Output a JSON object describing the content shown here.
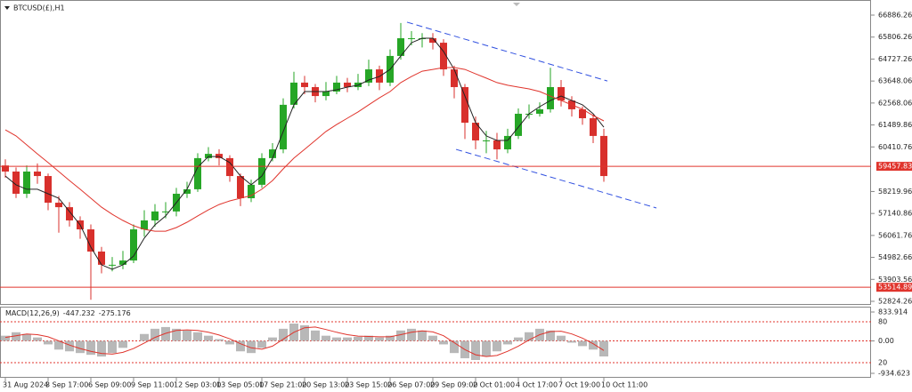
{
  "chart_data": [
    {
      "type": "candlestick",
      "title": "BTCUSD(£),H1",
      "categories": [
        "31 Aug 2024",
        null,
        null,
        null,
        "3 Sep 17:00",
        null,
        null,
        null,
        "6 Sep 09:00",
        null,
        null,
        null,
        "9 Sep 11:00",
        null,
        null,
        null,
        "12 Sep 03:00",
        null,
        null,
        null,
        "13 Sep 05:00",
        null,
        null,
        null,
        "17 Sep 21:00",
        null,
        null,
        null,
        "20 Sep 13:00",
        null,
        null,
        null,
        "23 Sep 15:00",
        null,
        null,
        null,
        "26 Sep 07:00",
        null,
        null,
        null,
        "29 Sep 09:00",
        null,
        null,
        null,
        "2 Oct 01:00",
        null,
        null,
        null,
        "4 Oct 17:00",
        null,
        null,
        null,
        "7 Oct 19:00",
        null,
        null,
        null,
        "10 Oct 11:00"
      ],
      "open": [
        59500,
        59200,
        58110,
        59200,
        58980,
        57670,
        57450,
        56800,
        56360,
        55270,
        54620,
        54620,
        54830,
        56360,
        56800,
        57240,
        57240,
        58110,
        58330,
        59860,
        60070,
        59860,
        58980,
        57890,
        58550,
        59860,
        60290,
        62480,
        63570,
        63350,
        62910,
        63130,
        63570,
        63350,
        63570,
        64220,
        63570,
        64880,
        65750,
        65750,
        65750,
        65530,
        64220,
        63350,
        61600,
        60730,
        60730,
        60290,
        60950,
        62040,
        62040,
        62260,
        63350,
        62690,
        62260,
        61820,
        60950
      ],
      "high": [
        59800,
        59400,
        59500,
        59600,
        59100,
        58000,
        57700,
        57000,
        56600,
        55500,
        55000,
        55300,
        56600,
        57300,
        57600,
        57700,
        58400,
        58700,
        60100,
        60400,
        60300,
        60000,
        59100,
        58800,
        60100,
        60600,
        62800,
        64100,
        63900,
        63500,
        63600,
        63900,
        63800,
        64000,
        64700,
        64400,
        65200,
        66500,
        66100,
        66000,
        66000,
        65700,
        64400,
        63500,
        61900,
        61200,
        61100,
        61300,
        62300,
        62500,
        62600,
        64300,
        63700,
        62900,
        62400,
        62000,
        61300
      ],
      "low": [
        58900,
        57900,
        57900,
        58600,
        57300,
        56200,
        56500,
        55900,
        52900,
        54200,
        54300,
        54400,
        54700,
        56000,
        56500,
        56900,
        57000,
        57900,
        58200,
        59700,
        59500,
        58700,
        57500,
        57700,
        58400,
        59700,
        60100,
        62300,
        63000,
        62600,
        62700,
        63000,
        63100,
        63200,
        63400,
        63200,
        63400,
        64700,
        65400,
        65300,
        65200,
        63900,
        62800,
        60800,
        60300,
        60100,
        59800,
        60100,
        60800,
        61800,
        61900,
        62100,
        62400,
        61900,
        61500,
        60600,
        58700
      ],
      "close": [
        59200,
        58110,
        59200,
        58980,
        57670,
        57450,
        56800,
        56360,
        55270,
        54620,
        54620,
        54830,
        56360,
        56800,
        57240,
        57240,
        58110,
        58330,
        59860,
        60070,
        59860,
        58980,
        57890,
        58550,
        59860,
        60290,
        62480,
        63570,
        63350,
        62910,
        63130,
        63570,
        63350,
        63570,
        64220,
        63570,
        64880,
        65750,
        65750,
        65750,
        65530,
        64220,
        63350,
        61600,
        60730,
        60730,
        60290,
        60950,
        62040,
        62040,
        62260,
        63350,
        62690,
        62260,
        61820,
        60950,
        58980
      ],
      "up_color": "#26a626",
      "down_color": "#d8302c",
      "series": [
        {
          "color": "#222222",
          "values": [
            58980,
            58550,
            58330,
            58330,
            58110,
            57890,
            57240,
            56580,
            55490,
            54620,
            54400,
            54620,
            55050,
            55930,
            56580,
            57020,
            57670,
            58330,
            59420,
            59940,
            59940,
            59640,
            58980,
            58550,
            58980,
            59860,
            61170,
            62480,
            63130,
            63130,
            63130,
            63220,
            63350,
            63440,
            63700,
            63870,
            64220,
            64880,
            65530,
            65750,
            65750,
            65100,
            64220,
            62910,
            61600,
            60950,
            60730,
            60730,
            61380,
            62040,
            62390,
            62690,
            62910,
            62690,
            62480,
            62040,
            61380
          ]
        },
        {
          "color": "#e0342c",
          "values": [
            61250,
            60950,
            60510,
            60070,
            59640,
            59200,
            58760,
            58330,
            57890,
            57450,
            57100,
            56800,
            56540,
            56360,
            56270,
            56270,
            56450,
            56710,
            57020,
            57320,
            57580,
            57760,
            57890,
            58020,
            58330,
            58760,
            59330,
            59860,
            60290,
            60730,
            61170,
            61510,
            61820,
            62130,
            62480,
            62820,
            63130,
            63570,
            63870,
            64130,
            64220,
            64310,
            64310,
            64220,
            64000,
            63790,
            63570,
            63440,
            63350,
            63260,
            63130,
            62910,
            62690,
            62480,
            62260,
            61950,
            61690
          ]
        }
      ],
      "trendlines": [
        {
          "color": "#3050e0",
          "x": [
            37.58,
            56.33
          ],
          "y": [
            66540,
            63650
          ]
        },
        {
          "color": "#3050e0",
          "x": [
            42.17,
            60.92
          ],
          "y": [
            60290,
            57410
          ]
        }
      ],
      "hlines": [
        {
          "value": 59457.83,
          "color": "#e0342c"
        },
        {
          "value": 53514.89,
          "color": "#e0342c"
        }
      ],
      "xlim": [
        -0.5,
        81
      ],
      "ylim": [
        52737,
        67585
      ],
      "yticks": [
        66886.26,
        65806.26,
        64727.26,
        63648.06,
        62568.06,
        61489.86,
        60410.76,
        58219.96,
        57140.86,
        56061.76,
        54982.66,
        53903.56,
        52824.26
      ]
    },
    {
      "type": "macd",
      "title": "MACD(12,26,9)",
      "histogram": [
        150,
        250,
        200,
        100,
        -100,
        -250,
        -300,
        -350,
        -400,
        -450,
        -350,
        -200,
        0,
        200,
        350,
        400,
        350,
        300,
        250,
        150,
        50,
        -100,
        -300,
        -350,
        -200,
        100,
        350,
        500,
        450,
        300,
        150,
        100,
        100,
        120,
        150,
        100,
        150,
        300,
        350,
        300,
        150,
        -100,
        -350,
        -500,
        -550,
        -450,
        -300,
        -100,
        100,
        250,
        350,
        300,
        150,
        -50,
        -150,
        -250,
        -447.232
      ],
      "histogram_color": "#b8b8b8",
      "signal": [
        100,
        150,
        200,
        180,
        120,
        0,
        -120,
        -220,
        -300,
        -360,
        -380,
        -330,
        -220,
        -60,
        100,
        220,
        300,
        320,
        300,
        250,
        170,
        60,
        -80,
        -200,
        -240,
        -150,
        50,
        250,
        380,
        400,
        330,
        250,
        180,
        140,
        130,
        120,
        120,
        180,
        250,
        290,
        260,
        150,
        -50,
        -250,
        -400,
        -450,
        -420,
        -300,
        -150,
        30,
        180,
        270,
        280,
        200,
        80,
        -80,
        -275.176
      ],
      "signal_color": "#e0342c",
      "ylim": [
        -934.623,
        833.914
      ],
      "yticks": [
        833.914,
        {
          "value": 0,
          "label": "0.00"
        },
        -934.623
      ],
      "y2lim": [
        0,
        100
      ],
      "y2ticks": [
        80,
        20
      ],
      "level_color": "#e0342c"
    }
  ]
}
